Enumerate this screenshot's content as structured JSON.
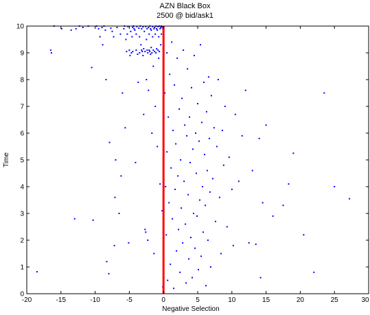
{
  "chart_data": {
    "type": "scatter",
    "title": "AZN Black Box",
    "subtitle": "2500 @ bid/ask1",
    "xlabel": "Negative Selection",
    "ylabel": "Time",
    "xlim": [
      -20,
      30
    ],
    "ylim": [
      0,
      10
    ],
    "xticks": [
      "-20",
      "-15",
      "-10",
      "-5",
      "0",
      "5",
      "10",
      "15",
      "20",
      "25",
      "30"
    ],
    "yticks": [
      "0",
      "1",
      "2",
      "3",
      "4",
      "5",
      "6",
      "7",
      "8",
      "9",
      "10"
    ],
    "grid": false,
    "colors": {
      "points": "#0000ff",
      "reference_line": "#ff0000",
      "axes": "#000000"
    },
    "reference_line": {
      "x": 0,
      "y_from": 0,
      "y_to": 10
    },
    "series": [
      {
        "points": [
          [
            -18.5,
            0.82
          ],
          [
            -16.5,
            9.1
          ],
          [
            -16.4,
            9.0
          ],
          [
            -16.0,
            10.0
          ],
          [
            -14.9,
            9.9
          ],
          [
            -13.5,
            9.85
          ],
          [
            -13.0,
            2.8
          ],
          [
            -12.8,
            9.9
          ],
          [
            -12.3,
            10.0
          ],
          [
            -11.8,
            9.95
          ],
          [
            -11.0,
            10.0
          ],
          [
            -10.5,
            8.45
          ],
          [
            -10.3,
            2.75
          ],
          [
            -9.8,
            10.0
          ],
          [
            -9.5,
            9.9
          ],
          [
            -9.3,
            9.6
          ],
          [
            -9.0,
            9.95
          ],
          [
            -8.9,
            9.3
          ],
          [
            -8.7,
            10.0
          ],
          [
            -8.5,
            9.85
          ],
          [
            -8.4,
            8.0
          ],
          [
            -8.3,
            1.2
          ],
          [
            -8.0,
            0.75
          ],
          [
            -7.9,
            5.65
          ],
          [
            -7.7,
            9.92
          ],
          [
            -7.5,
            9.8
          ],
          [
            -7.3,
            9.6
          ],
          [
            -7.2,
            1.8
          ],
          [
            -7.1,
            3.6
          ],
          [
            -7.0,
            5.0
          ],
          [
            -6.8,
            9.95
          ],
          [
            -6.5,
            3.0
          ],
          [
            -6.3,
            9.7
          ],
          [
            -6.2,
            4.4
          ],
          [
            -6.0,
            7.5
          ],
          [
            -5.8,
            9.9
          ],
          [
            -5.7,
            10.0
          ],
          [
            -5.6,
            6.2
          ],
          [
            -5.5,
            9.5
          ],
          [
            -5.4,
            9.05
          ],
          [
            -5.3,
            9.7
          ],
          [
            -5.2,
            9.98
          ],
          [
            -5.1,
            1.9
          ],
          [
            -5.0,
            9.1
          ],
          [
            -4.9,
            8.9
          ],
          [
            -4.8,
            9.8
          ],
          [
            -4.7,
            9.0
          ],
          [
            -4.6,
            9.6
          ],
          [
            -4.5,
            9.95
          ],
          [
            -4.5,
            9.05
          ],
          [
            -4.4,
            10.0
          ],
          [
            -4.3,
            9.9
          ],
          [
            -4.2,
            9.85
          ],
          [
            -4.1,
            4.9
          ],
          [
            -4.0,
            9.1
          ],
          [
            -4.0,
            9.7
          ],
          [
            -3.9,
            9.98
          ],
          [
            -3.8,
            8.95
          ],
          [
            -3.7,
            7.9
          ],
          [
            -3.6,
            9.92
          ],
          [
            -3.5,
            9.0
          ],
          [
            -3.5,
            9.6
          ],
          [
            -3.4,
            10.0
          ],
          [
            -3.3,
            9.3
          ],
          [
            -3.2,
            9.1
          ],
          [
            -3.2,
            9.9
          ],
          [
            -3.1,
            9.05
          ],
          [
            -3.0,
            8.9
          ],
          [
            -3.0,
            9.97
          ],
          [
            -2.9,
            9.15
          ],
          [
            -2.9,
            6.7
          ],
          [
            -2.8,
            9.8
          ],
          [
            -2.7,
            2.4
          ],
          [
            -2.7,
            9.05
          ],
          [
            -2.6,
            2.3
          ],
          [
            -2.6,
            9.98
          ],
          [
            -2.5,
            8.0
          ],
          [
            -2.5,
            9.5
          ],
          [
            -2.4,
            9.1
          ],
          [
            -2.4,
            9.9
          ],
          [
            -2.3,
            2.0
          ],
          [
            -2.3,
            9.0
          ],
          [
            -2.2,
            9.95
          ],
          [
            -2.2,
            7.6
          ],
          [
            -2.1,
            9.7
          ],
          [
            -2.1,
            9.1
          ],
          [
            -2.0,
            10.0
          ],
          [
            -2.0,
            9.05
          ],
          [
            -1.9,
            9.9
          ],
          [
            -1.9,
            8.95
          ],
          [
            -1.8,
            9.2
          ],
          [
            -1.8,
            9.85
          ],
          [
            -1.7,
            9.0
          ],
          [
            -1.7,
            6.0
          ],
          [
            -1.6,
            9.98
          ],
          [
            -1.6,
            9.6
          ],
          [
            -1.5,
            8.5
          ],
          [
            -1.5,
            9.1
          ],
          [
            -1.4,
            9.9
          ],
          [
            -1.4,
            1.5
          ],
          [
            -1.3,
            9.05
          ],
          [
            -1.3,
            9.95
          ],
          [
            -1.2,
            7.0
          ],
          [
            -1.2,
            9.7
          ],
          [
            -1.1,
            10.0
          ],
          [
            -1.1,
            9.0
          ],
          [
            -1.0,
            9.9
          ],
          [
            -1.0,
            9.15
          ],
          [
            -0.9,
            5.5
          ],
          [
            -0.9,
            9.85
          ],
          [
            -0.8,
            9.98
          ],
          [
            -0.8,
            9.1
          ],
          [
            -0.7,
            9.6
          ],
          [
            -0.7,
            8.8
          ],
          [
            -0.6,
            10.0
          ],
          [
            -0.6,
            9.05
          ],
          [
            -0.5,
            9.9
          ],
          [
            -0.5,
            4.1
          ],
          [
            -0.4,
            9.95
          ],
          [
            -0.4,
            9.3
          ],
          [
            -0.3,
            10.0
          ],
          [
            -0.3,
            9.7
          ],
          [
            -0.2,
            9.97
          ],
          [
            -0.2,
            3.1
          ],
          [
            -0.1,
            9.9
          ],
          [
            -0.1,
            0.25
          ],
          [
            0.2,
            7.5
          ],
          [
            0.3,
            4.0
          ],
          [
            0.4,
            2.2
          ],
          [
            0.5,
            9.0
          ],
          [
            0.5,
            5.3
          ],
          [
            0.6,
            0.5
          ],
          [
            0.7,
            6.6
          ],
          [
            0.8,
            3.4
          ],
          [
            0.9,
            8.2
          ],
          [
            1.0,
            1.1
          ],
          [
            1.1,
            4.7
          ],
          [
            1.2,
            9.4
          ],
          [
            1.3,
            2.8
          ],
          [
            1.4,
            6.1
          ],
          [
            1.5,
            0.2
          ],
          [
            1.6,
            7.8
          ],
          [
            1.7,
            3.9
          ],
          [
            1.8,
            5.6
          ],
          [
            1.9,
            1.6
          ],
          [
            2.0,
            8.8
          ],
          [
            2.1,
            4.4
          ],
          [
            2.2,
            2.4
          ],
          [
            2.3,
            6.9
          ],
          [
            2.4,
            0.8
          ],
          [
            2.5,
            5.0
          ],
          [
            2.6,
            3.2
          ],
          [
            2.7,
            7.3
          ],
          [
            2.8,
            1.9
          ],
          [
            2.9,
            9.1
          ],
          [
            3.0,
            4.2
          ],
          [
            3.1,
            6.3
          ],
          [
            3.2,
            2.6
          ],
          [
            3.3,
            0.4
          ],
          [
            3.4,
            5.9
          ],
          [
            3.5,
            8.4
          ],
          [
            3.6,
            3.7
          ],
          [
            3.7,
            1.3
          ],
          [
            3.8,
            6.6
          ],
          [
            3.9,
            4.9
          ],
          [
            4.0,
            2.1
          ],
          [
            4.1,
            7.7
          ],
          [
            4.2,
            0.6
          ],
          [
            4.3,
            5.4
          ],
          [
            4.4,
            3.0
          ],
          [
            4.5,
            8.9
          ],
          [
            4.6,
            1.7
          ],
          [
            4.7,
            6.0
          ],
          [
            4.8,
            4.5
          ],
          [
            4.9,
            2.9
          ],
          [
            5.0,
            7.1
          ],
          [
            5.1,
            0.9
          ],
          [
            5.2,
            5.7
          ],
          [
            5.3,
            3.5
          ],
          [
            5.4,
            9.3
          ],
          [
            5.5,
            1.4
          ],
          [
            5.6,
            6.4
          ],
          [
            5.7,
            4.0
          ],
          [
            5.8,
            2.3
          ],
          [
            5.9,
            7.9
          ],
          [
            6.0,
            5.2
          ],
          [
            6.1,
            3.3
          ],
          [
            6.2,
            0.3
          ],
          [
            6.3,
            6.8
          ],
          [
            6.4,
            4.6
          ],
          [
            6.5,
            2.0
          ],
          [
            6.6,
            8.1
          ],
          [
            6.7,
            5.8
          ],
          [
            6.8,
            3.8
          ],
          [
            6.9,
            1.0
          ],
          [
            7.0,
            7.4
          ],
          [
            7.2,
            4.3
          ],
          [
            7.4,
            6.2
          ],
          [
            7.6,
            2.7
          ],
          [
            7.8,
            5.5
          ],
          [
            8.0,
            8.0
          ],
          [
            8.2,
            3.6
          ],
          [
            8.4,
            1.5
          ],
          [
            8.6,
            6.1
          ],
          [
            8.8,
            4.8
          ],
          [
            9.0,
            7.0
          ],
          [
            9.3,
            2.5
          ],
          [
            9.6,
            5.1
          ],
          [
            10.0,
            3.9
          ],
          [
            10.2,
            1.8
          ],
          [
            10.5,
            6.7
          ],
          [
            11.0,
            4.2
          ],
          [
            11.5,
            5.9
          ],
          [
            12.0,
            7.6
          ],
          [
            12.5,
            1.9
          ],
          [
            13.0,
            4.6
          ],
          [
            13.5,
            1.85
          ],
          [
            14.0,
            5.8
          ],
          [
            14.2,
            0.6
          ],
          [
            14.5,
            3.4
          ],
          [
            15.0,
            6.3
          ],
          [
            16.0,
            2.9
          ],
          [
            17.5,
            3.3
          ],
          [
            18.3,
            4.1
          ],
          [
            19.0,
            5.25
          ],
          [
            20.5,
            2.2
          ],
          [
            22.0,
            0.8
          ],
          [
            23.5,
            7.5
          ],
          [
            25.0,
            4.0
          ],
          [
            27.2,
            3.55
          ]
        ]
      }
    ]
  }
}
